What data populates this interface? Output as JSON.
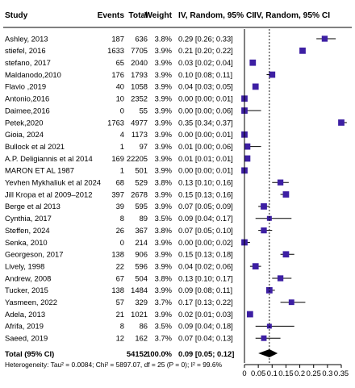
{
  "headers": {
    "study": "Study",
    "events": "Events",
    "total": "Total",
    "weight": "Weight",
    "ci": "IV, Random, 95% CI",
    "plot": "IV, Random, 95% CI"
  },
  "total_row": {
    "label": "Total (95% CI)",
    "total": "54152",
    "weight": "100.0%",
    "ci": "0.09 [0.05; 0.12]"
  },
  "heterogeneity": "Heterogeneity: Tau² = 0.0084; Chi² = 5897.07, df = 25 (P = 0); I² = 99.6%",
  "colors": {
    "square": "#3d1fa3",
    "line": "#000000",
    "dashed": "#000000"
  },
  "chart_data": {
    "type": "forest",
    "xlim": [
      0,
      0.35
    ],
    "xticks": [
      "0",
      "0.05",
      "0.1",
      "0.15",
      "0.2",
      "0.25",
      "0.3",
      "0.35"
    ],
    "pooled": {
      "estimate": 0.09,
      "lower": 0.05,
      "upper": 0.12
    },
    "studies": [
      {
        "name": "Ashley, 2013",
        "events": "187",
        "total": "636",
        "weight": "3.8%",
        "ci": "0.29 [0.26; 0.33]",
        "est": 0.29,
        "lo": 0.26,
        "hi": 0.33
      },
      {
        "name": "stiefel, 2016",
        "events": "1633",
        "total": "7705",
        "weight": "3.9%",
        "ci": "0.21 [0.20; 0.22]",
        "est": 0.21,
        "lo": 0.2,
        "hi": 0.22
      },
      {
        "name": "stefano, 2017",
        "events": "65",
        "total": "2040",
        "weight": "3.9%",
        "ci": "0.03 [0.02; 0.04]",
        "est": 0.03,
        "lo": 0.02,
        "hi": 0.04
      },
      {
        "name": "Maldanodo,2010",
        "events": "176",
        "total": "1793",
        "weight": "3.9%",
        "ci": "0.10 [0.08; 0.11]",
        "est": 0.1,
        "lo": 0.08,
        "hi": 0.11
      },
      {
        "name": "Flavio ,2019",
        "events": "40",
        "total": "1058",
        "weight": "3.9%",
        "ci": "0.04 [0.03; 0.05]",
        "est": 0.04,
        "lo": 0.03,
        "hi": 0.05
      },
      {
        "name": "Antonio,2016",
        "events": "10",
        "total": "2352",
        "weight": "3.9%",
        "ci": "0.00 [0.00; 0.01]",
        "est": 0.0,
        "lo": 0.0,
        "hi": 0.01
      },
      {
        "name": "Daimee,2016",
        "events": "0",
        "total": "55",
        "weight": "3.9%",
        "ci": "0.00 [0.00; 0.06]",
        "est": 0.0,
        "lo": 0.0,
        "hi": 0.06
      },
      {
        "name": "Petek,2020",
        "events": "1763",
        "total": "4977",
        "weight": "3.9%",
        "ci": "0.35 [0.34; 0.37]",
        "est": 0.35,
        "lo": 0.34,
        "hi": 0.37
      },
      {
        "name": "Gioia, 2024",
        "events": "4",
        "total": "1173",
        "weight": "3.9%",
        "ci": "0.00 [0.00; 0.01]",
        "est": 0.0,
        "lo": 0.0,
        "hi": 0.01
      },
      {
        "name": "Bullock et al 2021",
        "events": "1",
        "total": "97",
        "weight": "3.9%",
        "ci": "0.01 [0.00; 0.06]",
        "est": 0.01,
        "lo": 0.0,
        "hi": 0.06
      },
      {
        "name": "A.P. Deligiannis et al 2014",
        "events": "169",
        "total": "22205",
        "weight": "3.9%",
        "ci": "0.01 [0.01; 0.01]",
        "est": 0.01,
        "lo": 0.01,
        "hi": 0.01
      },
      {
        "name": "MARON ET AL 1987",
        "events": "1",
        "total": "501",
        "weight": "3.9%",
        "ci": "0.00 [0.00; 0.01]",
        "est": 0.0,
        "lo": 0.0,
        "hi": 0.01
      },
      {
        "name": "Yevhen Mykhaliuk et al 2024",
        "events": "68",
        "total": "529",
        "weight": "3.8%",
        "ci": "0.13 [0.10; 0.16]",
        "est": 0.13,
        "lo": 0.1,
        "hi": 0.16
      },
      {
        "name": "Jill Kropa et al 2009–2012",
        "events": "397",
        "total": "2678",
        "weight": "3.9%",
        "ci": "0.15 [0.13; 0.16]",
        "est": 0.15,
        "lo": 0.13,
        "hi": 0.16
      },
      {
        "name": "Berge et al 2013",
        "events": "39",
        "total": "595",
        "weight": "3.9%",
        "ci": "0.07 [0.05; 0.09]",
        "est": 0.07,
        "lo": 0.05,
        "hi": 0.09
      },
      {
        "name": "Cynthia, 2017",
        "events": "8",
        "total": "89",
        "weight": "3.5%",
        "ci": "0.09 [0.04; 0.17]",
        "est": 0.09,
        "lo": 0.04,
        "hi": 0.17
      },
      {
        "name": "Steffen, 2024",
        "events": "26",
        "total": "367",
        "weight": "3.8%",
        "ci": "0.07 [0.05; 0.10]",
        "est": 0.07,
        "lo": 0.05,
        "hi": 0.1
      },
      {
        "name": "Senka, 2010",
        "events": "0",
        "total": "214",
        "weight": "3.9%",
        "ci": "0.00 [0.00; 0.02]",
        "est": 0.0,
        "lo": 0.0,
        "hi": 0.02
      },
      {
        "name": "Georgeson, 2017",
        "events": "138",
        "total": "906",
        "weight": "3.9%",
        "ci": "0.15 [0.13; 0.18]",
        "est": 0.15,
        "lo": 0.13,
        "hi": 0.18
      },
      {
        "name": "Lively, 1998",
        "events": "22",
        "total": "596",
        "weight": "3.9%",
        "ci": "0.04 [0.02; 0.06]",
        "est": 0.04,
        "lo": 0.02,
        "hi": 0.06
      },
      {
        "name": "Andrew, 2008",
        "events": "67",
        "total": "504",
        "weight": "3.8%",
        "ci": "0.13 [0.10; 0.17]",
        "est": 0.13,
        "lo": 0.1,
        "hi": 0.17
      },
      {
        "name": "Tucker, 2015",
        "events": "138",
        "total": "1484",
        "weight": "3.9%",
        "ci": "0.09 [0.08; 0.11]",
        "est": 0.09,
        "lo": 0.08,
        "hi": 0.11
      },
      {
        "name": "Yasmeen, 2022",
        "events": "57",
        "total": "329",
        "weight": "3.7%",
        "ci": "0.17 [0.13; 0.22]",
        "est": 0.17,
        "lo": 0.13,
        "hi": 0.22
      },
      {
        "name": "Adela, 2013",
        "events": "21",
        "total": "1021",
        "weight": "3.9%",
        "ci": "0.02 [0.01; 0.03]",
        "est": 0.02,
        "lo": 0.01,
        "hi": 0.03
      },
      {
        "name": "Afrifa, 2019",
        "events": "8",
        "total": "86",
        "weight": "3.5%",
        "ci": "0.09 [0.04; 0.18]",
        "est": 0.09,
        "lo": 0.04,
        "hi": 0.18
      },
      {
        "name": "Saeed, 2019",
        "events": "12",
        "total": "162",
        "weight": "3.7%",
        "ci": "0.07 [0.04; 0.13]",
        "est": 0.07,
        "lo": 0.04,
        "hi": 0.13
      }
    ]
  }
}
